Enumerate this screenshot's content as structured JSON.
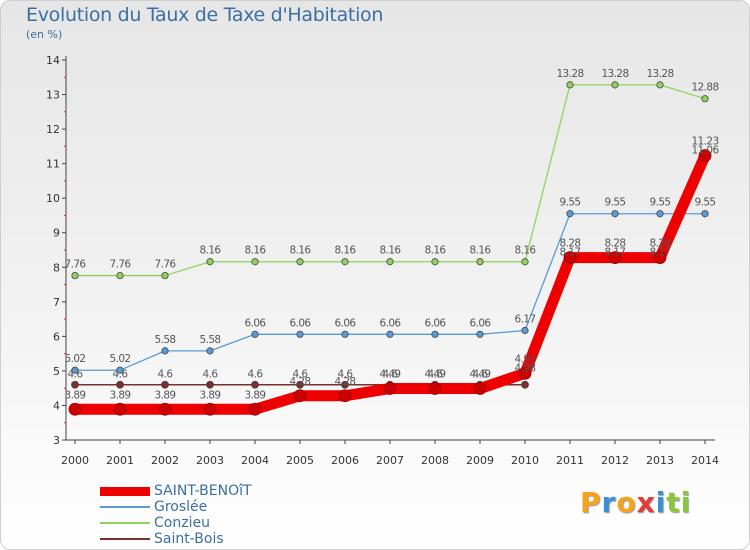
{
  "title": "Evolution du Taux de Taxe d'Habitation",
  "subtitle": "(en %)",
  "brand": {
    "letters": [
      {
        "ch": "P",
        "color": "#f7a21b"
      },
      {
        "ch": "r",
        "color": "#3b8fd6"
      },
      {
        "ch": "o",
        "color": "#f7a21b"
      },
      {
        "ch": "x",
        "color": "#e03a3a"
      },
      {
        "ch": "i",
        "color": "#3b8fd6"
      },
      {
        "ch": "t",
        "color": "#8cc63f"
      },
      {
        "ch": "i",
        "color": "#8cc63f"
      }
    ]
  },
  "chart_data": {
    "type": "line",
    "x": [
      2000,
      2001,
      2002,
      2003,
      2004,
      2005,
      2006,
      2007,
      2008,
      2009,
      2010,
      2011,
      2012,
      2013,
      2014
    ],
    "xtick_labels": [
      "2000",
      "2001",
      "2002",
      "2003",
      "2004",
      "2005",
      "2006",
      "2007",
      "2008",
      "2009",
      "2010",
      "2011",
      "2012",
      "2013",
      "2014"
    ],
    "ylim": [
      3,
      14
    ],
    "yticks": [
      3,
      4,
      5,
      6,
      7,
      8,
      9,
      10,
      11,
      12,
      13,
      14
    ],
    "ytick_labels": [
      "3",
      "4",
      "5",
      "6",
      "7",
      "8",
      "9",
      "10",
      "11",
      "12",
      "13",
      "14"
    ],
    "grid": false,
    "legend_position": "bottom-left",
    "series": [
      {
        "name": "Saint-Bois",
        "color": "#7a2e2e",
        "values": [
          4.6,
          4.6,
          4.6,
          4.6,
          4.6,
          4.6,
          4.6,
          4.6,
          4.6,
          4.6,
          4.6,
          null,
          null,
          null,
          null
        ],
        "labels": [
          "4.6",
          "4.6",
          "4.6",
          "4.6",
          "4.6",
          "4.6",
          "4.6",
          "4.6",
          "4.6",
          "4.6",
          "",
          "",
          "",
          "",
          ""
        ]
      },
      {
        "name": "Groslée",
        "color": "#5b9bd5",
        "values": [
          5.02,
          5.02,
          5.58,
          5.58,
          6.06,
          6.06,
          6.06,
          6.06,
          6.06,
          6.06,
          6.17,
          9.55,
          9.55,
          9.55,
          9.55
        ],
        "labels": [
          "5.02",
          "5.02",
          "5.58",
          "5.58",
          "6.06",
          "6.06",
          "6.06",
          "6.06",
          "6.06",
          "6.06",
          "6.17",
          "9.55",
          "9.55",
          "9.55",
          "9.55"
        ]
      },
      {
        "name": "Conzieu",
        "color": "#8fd45a",
        "values": [
          7.76,
          7.76,
          7.76,
          8.16,
          8.16,
          8.16,
          8.16,
          8.16,
          8.16,
          8.16,
          8.16,
          13.28,
          13.28,
          13.28,
          12.88
        ],
        "labels": [
          "7.76",
          "7.76",
          "7.76",
          "8.16",
          "8.16",
          "8.16",
          "8.16",
          "8.16",
          "8.16",
          "8.16",
          "8.16",
          "13.28",
          "13.28",
          "13.28",
          "12.88"
        ]
      },
      {
        "name": "SAINT-BENOîT",
        "color": "#ee0000",
        "values": [
          3.89,
          3.89,
          3.89,
          3.89,
          3.89,
          4.28,
          4.28,
          4.49,
          4.49,
          4.49,
          4.93,
          8.28,
          8.28,
          8.28,
          11.23
        ],
        "labels": [
          "3.89",
          "3.89",
          "3.89",
          "3.89",
          "3.89",
          "4.28",
          "4.28",
          "4.49",
          "4.49",
          "4.49",
          "4.93",
          "8.28",
          "8.28",
          "8.28",
          "11.23"
        ]
      }
    ],
    "extra_labels": [
      {
        "x": 2010,
        "y": 4.93,
        "text": "4.98"
      },
      {
        "x": 2011,
        "y": 8.28,
        "text": "8.17"
      },
      {
        "x": 2012,
        "y": 8.28,
        "text": "8.17"
      },
      {
        "x": 2013,
        "y": 8.28,
        "text": "8.17"
      },
      {
        "x": 2014,
        "y": 11.23,
        "text": "11.06"
      }
    ]
  },
  "legend": [
    {
      "label": "SAINT-BENOîT",
      "color": "#ee0000"
    },
    {
      "label": "Groslée",
      "color": "#5b9bd5"
    },
    {
      "label": "Conzieu",
      "color": "#8fd45a"
    },
    {
      "label": "Saint-Bois",
      "color": "#7a2e2e"
    }
  ]
}
